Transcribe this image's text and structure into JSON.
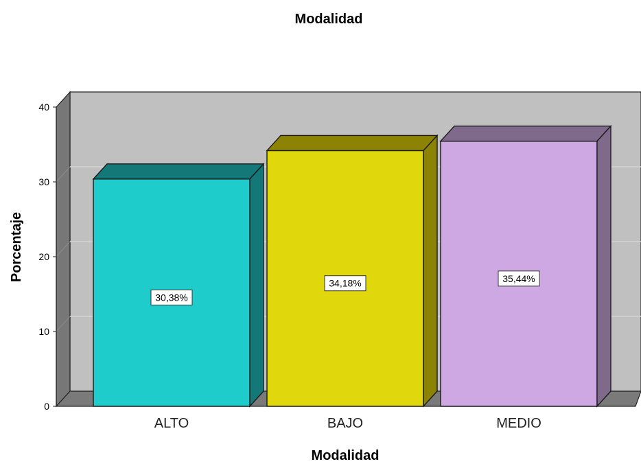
{
  "chart_data": {
    "type": "bar",
    "title": "Modalidad",
    "xlabel": "Modalidad",
    "ylabel": "Porcentaje",
    "ylim": [
      0,
      40
    ],
    "yticks": [
      0,
      10,
      20,
      30,
      40
    ],
    "grid": true,
    "three_d": true,
    "categories": [
      "ALTO",
      "BAJO",
      "MEDIO"
    ],
    "values": [
      30.38,
      34.18,
      35.44
    ],
    "data_labels": [
      "30,38%",
      "34,18%",
      "35,44%"
    ],
    "colors": [
      "#1ECDCB",
      "#E1D70D",
      "#CDA8E3"
    ],
    "side_colors": [
      "#147878",
      "#8C8203",
      "#806A8C"
    ],
    "background": {
      "back_wall": "#C0C0C0",
      "left_wall": "#777777",
      "floor": "#7A7A7A",
      "gridline": "#D4D4D4"
    }
  }
}
